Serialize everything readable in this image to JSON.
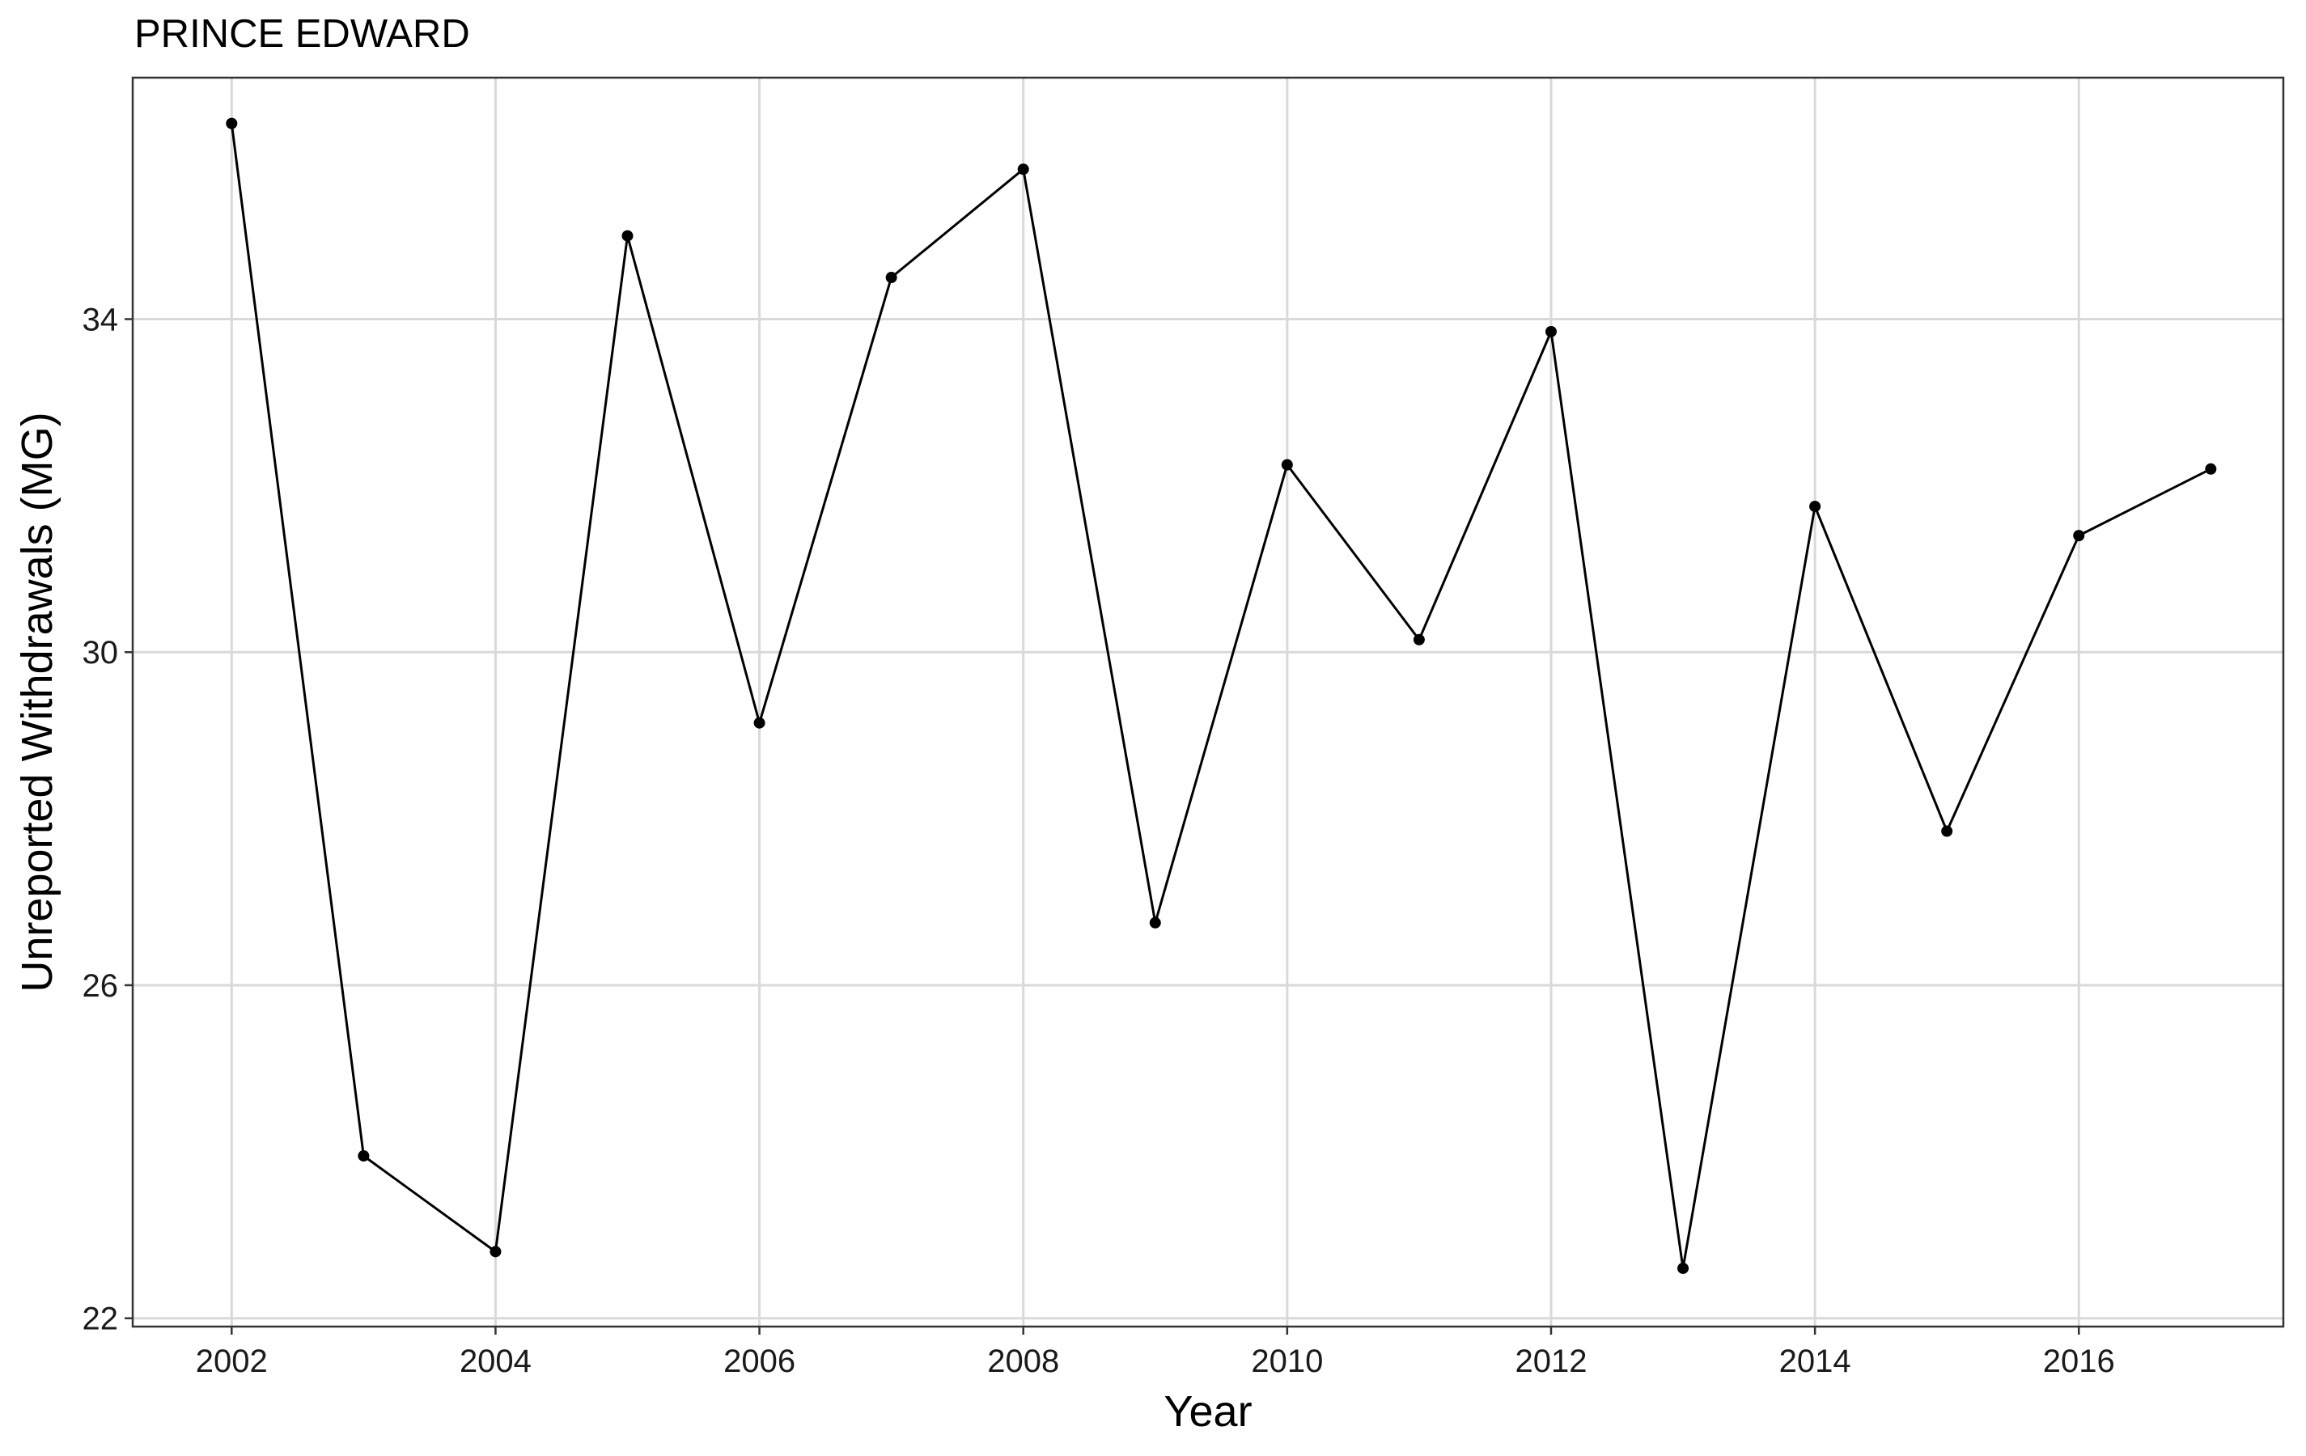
{
  "chart_data": {
    "type": "line",
    "title": "PRINCE EDWARD",
    "xlabel": "Year",
    "ylabel": "Unreported Withdrawals (MG)",
    "xlim": [
      2001.25,
      2017.55
    ],
    "ylim": [
      21.9,
      36.9
    ],
    "x_ticks": [
      2002,
      2004,
      2006,
      2008,
      2010,
      2012,
      2014,
      2016
    ],
    "x_tick_labels": [
      "2002",
      "2004",
      "2006",
      "2008",
      "2010",
      "2012",
      "2014",
      "2016"
    ],
    "y_ticks": [
      22,
      26,
      30,
      34
    ],
    "y_tick_labels": [
      "22",
      "26",
      "30",
      "34"
    ],
    "grid": true,
    "legend": "none",
    "colors": {
      "line": "#000000",
      "grid": "#d9d9d9",
      "panel_border": "#333333",
      "background": "#ffffff"
    },
    "series": [
      {
        "x": [
          2002,
          2003,
          2004,
          2005,
          2006,
          2007,
          2008,
          2009,
          2010,
          2011,
          2012,
          2013,
          2014,
          2015,
          2016,
          2017
        ],
        "y": [
          36.35,
          23.95,
          22.8,
          35.0,
          29.15,
          34.5,
          35.8,
          26.75,
          32.25,
          30.15,
          33.85,
          22.6,
          31.75,
          27.85,
          31.4,
          32.2
        ]
      }
    ]
  }
}
